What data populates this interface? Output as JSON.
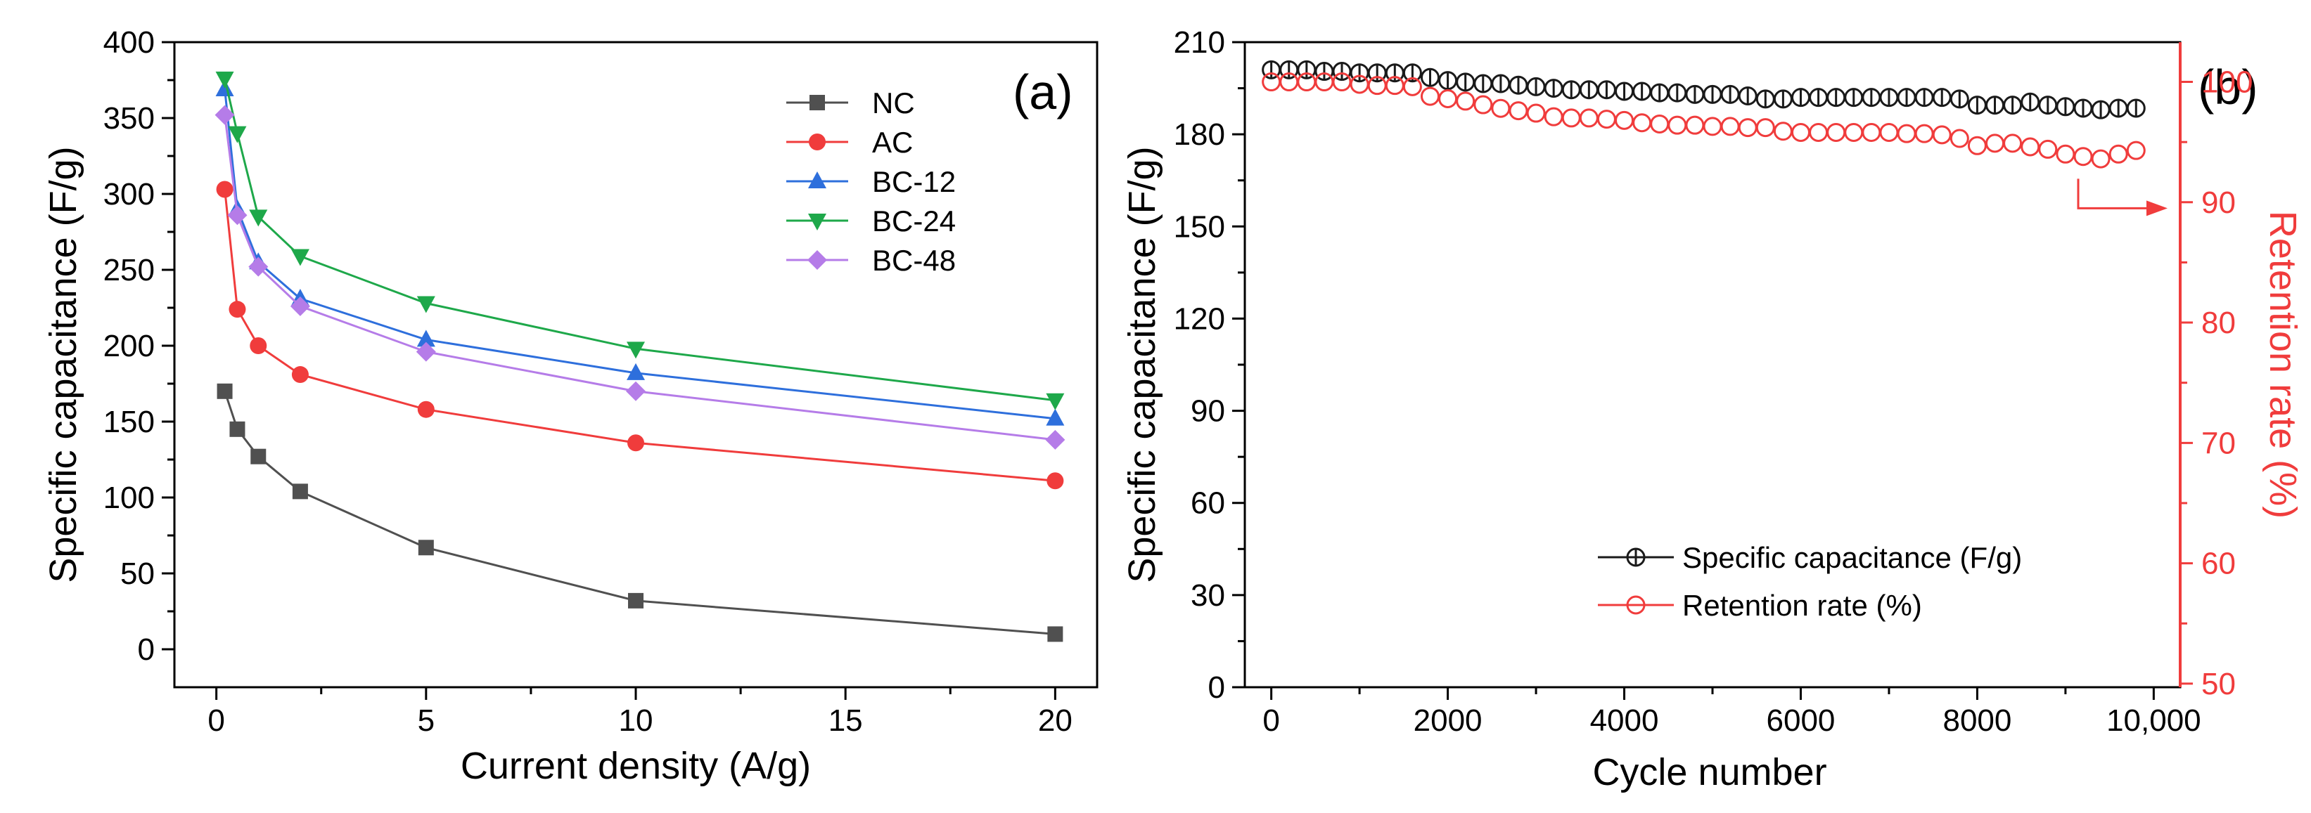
{
  "chart_data": [
    {
      "type": "line",
      "panel_label": "(a)",
      "xlabel": "Current density (A/g)",
      "ylabel": "Specific capacitance (F/g)",
      "xlim": [
        -1,
        21
      ],
      "ylim": [
        -25,
        400
      ],
      "x_ticks": [
        0,
        5,
        10,
        15,
        20
      ],
      "x_tick_labels": [
        "0",
        "5",
        "10",
        "15",
        "20"
      ],
      "y_ticks": [
        0,
        50,
        100,
        150,
        200,
        250,
        300,
        350,
        400
      ],
      "y_tick_labels": [
        "0",
        "50",
        "100",
        "150",
        "200",
        "250",
        "300",
        "350",
        "400"
      ],
      "legend_position": "top-right",
      "series": [
        {
          "name": "NC",
          "color": "#505050",
          "marker": "square",
          "x": [
            0.2,
            0.5,
            1,
            2,
            5,
            10,
            20
          ],
          "values": [
            170,
            145,
            127,
            104,
            67,
            32,
            10
          ]
        },
        {
          "name": "AC",
          "color": "#f03c3c",
          "marker": "circle",
          "x": [
            0.2,
            0.5,
            1,
            2,
            5,
            10,
            20
          ],
          "values": [
            303,
            224,
            200,
            181,
            158,
            136,
            111
          ]
        },
        {
          "name": "BC-12",
          "color": "#2e6fdc",
          "marker": "triangle-up",
          "x": [
            0.2,
            0.5,
            1,
            2,
            5,
            10,
            20
          ],
          "values": [
            369,
            290,
            255,
            231,
            204,
            182,
            152
          ]
        },
        {
          "name": "BC-24",
          "color": "#1ea84a",
          "marker": "triangle-down",
          "x": [
            0.2,
            0.5,
            1,
            2,
            5,
            10,
            20
          ],
          "values": [
            376,
            340,
            285,
            259,
            228,
            198,
            164
          ]
        },
        {
          "name": "BC-48",
          "color": "#b57ce8",
          "marker": "diamond",
          "x": [
            0.2,
            0.5,
            1,
            2,
            5,
            10,
            20
          ],
          "values": [
            352,
            286,
            252,
            226,
            196,
            170,
            138
          ]
        }
      ]
    },
    {
      "type": "scatter",
      "panel_label": "(b)",
      "xlabel": "Cycle number",
      "ylabel": "Specific capacitance (F/g)",
      "y2label": "Retention rate (%)",
      "xlim": [
        -300,
        10300
      ],
      "ylim": [
        0,
        210
      ],
      "y2lim": [
        49.7,
        103.3
      ],
      "x_ticks": [
        0,
        2000,
        4000,
        6000,
        8000,
        10000
      ],
      "x_tick_labels": [
        "0",
        "2000",
        "4000",
        "6000",
        "8000",
        "10,000"
      ],
      "y_ticks": [
        0,
        30,
        60,
        90,
        120,
        150,
        180,
        210
      ],
      "y_tick_labels": [
        "0",
        "30",
        "60",
        "90",
        "120",
        "150",
        "180",
        "210"
      ],
      "y2_ticks": [
        50,
        60,
        70,
        80,
        90,
        100
      ],
      "y2_tick_labels": [
        "50",
        "60",
        "70",
        "80",
        "90",
        "100"
      ],
      "legend_position": "bottom-left",
      "annotation": {
        "type": "arrow",
        "points_to": "right axis",
        "y2_value": 89.5
      },
      "series": [
        {
          "name": "Specific capacitance (F/g)",
          "color": "#1a1a1a",
          "marker": "circle-open-barred",
          "axis": "left",
          "x": [
            0,
            200,
            400,
            600,
            800,
            1000,
            1200,
            1400,
            1600,
            1800,
            2000,
            2200,
            2400,
            2600,
            2800,
            3000,
            3200,
            3400,
            3600,
            3800,
            4000,
            4200,
            4400,
            4600,
            4800,
            5000,
            5200,
            5400,
            5600,
            5800,
            6000,
            6200,
            6400,
            6600,
            6800,
            7000,
            7200,
            7400,
            7600,
            7800,
            8000,
            8200,
            8400,
            8600,
            8800,
            9000,
            9200,
            9400,
            9600,
            9800
          ],
          "values": [
            201,
            201,
            201,
            200.5,
            200.5,
            200,
            200,
            200,
            200,
            198.5,
            197.5,
            197,
            196.5,
            196.5,
            196,
            195.5,
            195,
            194.5,
            194.5,
            194.5,
            194,
            194,
            193.5,
            193.5,
            193,
            193,
            193,
            192.5,
            191.5,
            191.5,
            192,
            192,
            192,
            192,
            192,
            192,
            192,
            192,
            192,
            191.5,
            189.5,
            189.5,
            189.5,
            190.5,
            189.5,
            189,
            188.5,
            188,
            188.5,
            188.5
          ]
        },
        {
          "name": "Retention rate (%)",
          "color": "#f03c3c",
          "marker": "circle-open",
          "axis": "right",
          "x": [
            0,
            200,
            400,
            600,
            800,
            1000,
            1200,
            1400,
            1600,
            1800,
            2000,
            2200,
            2400,
            2600,
            2800,
            3000,
            3200,
            3400,
            3600,
            3800,
            4000,
            4200,
            4400,
            4600,
            4800,
            5000,
            5200,
            5400,
            5600,
            5800,
            6000,
            6200,
            6400,
            6600,
            6800,
            7000,
            7200,
            7400,
            7600,
            7800,
            8000,
            8200,
            8400,
            8600,
            8800,
            9000,
            9200,
            9400,
            9600,
            9800
          ],
          "values": [
            100,
            100,
            100,
            100,
            100,
            99.8,
            99.7,
            99.7,
            99.6,
            98.8,
            98.6,
            98.4,
            98.1,
            97.8,
            97.6,
            97.4,
            97.1,
            97,
            97,
            96.9,
            96.8,
            96.6,
            96.5,
            96.4,
            96.4,
            96.3,
            96.3,
            96.2,
            96.2,
            95.9,
            95.8,
            95.8,
            95.8,
            95.8,
            95.8,
            95.8,
            95.7,
            95.7,
            95.6,
            95.3,
            94.7,
            94.9,
            94.9,
            94.6,
            94.4,
            94,
            93.8,
            93.6,
            94,
            94.3
          ]
        }
      ]
    }
  ]
}
